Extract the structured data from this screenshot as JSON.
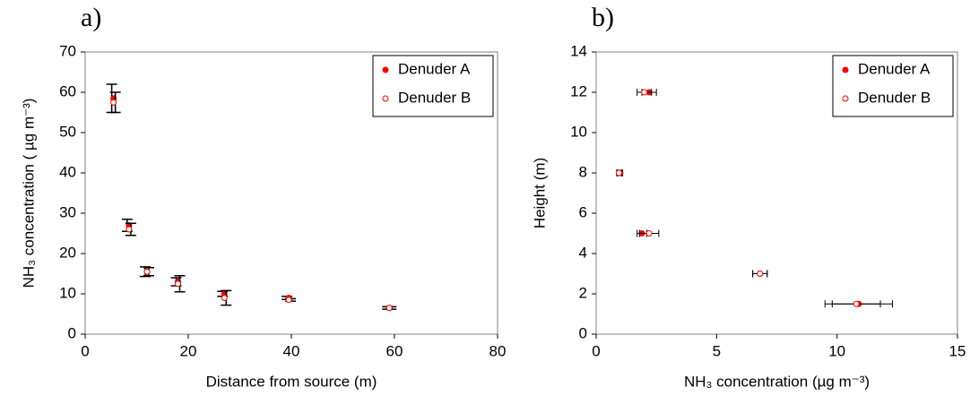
{
  "chart_data": [
    {
      "type": "scatter",
      "panel_label": "a)",
      "xlabel": "Distance from source (m)",
      "ylabel": "NH₃ concentration ( µg m⁻³)",
      "xlim": [
        0,
        80
      ],
      "xticks": [
        0,
        20,
        40,
        60,
        80
      ],
      "ylim": [
        0,
        70
      ],
      "yticks": [
        0,
        10,
        20,
        30,
        40,
        50,
        60,
        70
      ],
      "legend": "upper right",
      "series": [
        {
          "name": "Denuder A",
          "color": "#ff0000",
          "marker": "filled",
          "x": [
            5.5,
            8.5,
            12,
            18,
            27,
            39.5,
            59
          ],
          "values": [
            58.5,
            27,
            15.5,
            13,
            10,
            9,
            6.5
          ],
          "yerr": [
            3.5,
            1.5,
            1.2,
            1.0,
            0.6,
            0.4,
            0.3
          ]
        },
        {
          "name": "Denuder B",
          "color": "#ff0000",
          "marker": "open",
          "x": [
            5.5,
            8.5,
            12,
            18,
            27,
            39.5,
            59
          ],
          "values": [
            57.5,
            26,
            15.5,
            12.5,
            9,
            8.5,
            6.5
          ],
          "yerr": [
            2.5,
            1.5,
            1.0,
            2.0,
            1.8,
            0.3,
            0.3
          ]
        }
      ]
    },
    {
      "type": "scatter",
      "panel_label": "b)",
      "xlabel": "NH₃ concentration (µg m⁻³)",
      "ylabel": "Height (m)",
      "xlim": [
        0,
        15
      ],
      "xticks": [
        0,
        5,
        10,
        15
      ],
      "ylim": [
        0,
        14
      ],
      "yticks": [
        0,
        2,
        4,
        6,
        8,
        10,
        12,
        14
      ],
      "legend": "upper right",
      "series": [
        {
          "name": "Denuder A",
          "color": "#ff0000",
          "marker": "filled",
          "x": [
            2.2,
            1.0,
            1.9,
            6.8,
            10.9
          ],
          "values": [
            12,
            8,
            5,
            3,
            1.5
          ],
          "xerr": [
            0.3,
            0.1,
            0.2,
            0.3,
            1.4
          ]
        },
        {
          "name": "Denuder B",
          "color": "#ff0000",
          "marker": "open",
          "x": [
            2.0,
            0.95,
            2.2,
            6.8,
            10.8
          ],
          "values": [
            12,
            8,
            5,
            3,
            1.5
          ],
          "xerr": [
            0.3,
            0.1,
            0.4,
            0.3,
            1.0
          ]
        }
      ]
    }
  ]
}
